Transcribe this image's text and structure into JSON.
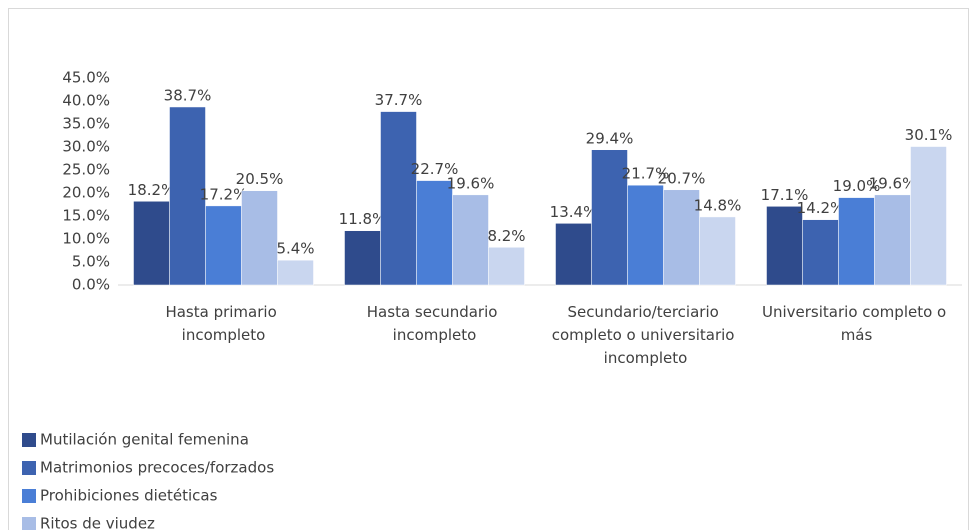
{
  "chart_data": {
    "type": "bar",
    "categories": [
      "Hasta primario incompleto",
      "Hasta secundario incompleto",
      "Secundario/terciario completo o universitario incompleto",
      "Universitario completo o más"
    ],
    "series": [
      {
        "name": "Mutilación genital femenina",
        "color": "#2f4b8c",
        "values": [
          18.2,
          11.8,
          13.4,
          17.1
        ],
        "value_labels": [
          "18.2%",
          "11.8%",
          "13.4%",
          "17.1%"
        ]
      },
      {
        "name": "Matrimonios precoces/forzados",
        "color": "#3d63b0",
        "values": [
          38.7,
          37.7,
          29.4,
          14.2
        ],
        "value_labels": [
          "38.7%",
          "37.7%",
          "29.4%",
          "14.2%"
        ]
      },
      {
        "name": "Prohibiciones dietéticas",
        "color": "#4a7ed6",
        "values": [
          17.2,
          22.7,
          21.7,
          19.0
        ],
        "value_labels": [
          "17.2%",
          "22.7%",
          "21.7%",
          "19.0%"
        ]
      },
      {
        "name": "Ritos de viudez",
        "color": "#a8bde6",
        "values": [
          20.5,
          19.6,
          20.7,
          19.6
        ],
        "value_labels": [
          "20.5%",
          "19.6%",
          "20.7%",
          "19.6%"
        ]
      },
      {
        "color": "#c9d6ef",
        "values": [
          5.4,
          8.2,
          14.8,
          30.1
        ],
        "value_labels": [
          "5.4%",
          "8.2%",
          "14.8%",
          "30.1%"
        ]
      }
    ],
    "ylim": [
      0,
      45
    ],
    "yticks": [
      {
        "value": 0,
        "label": "0.0%"
      },
      {
        "value": 5,
        "label": "5.0%"
      },
      {
        "value": 10,
        "label": "10.0%"
      },
      {
        "value": 15,
        "label": "15.0%"
      },
      {
        "value": 20,
        "label": "20.0%"
      },
      {
        "value": 25,
        "label": "25.0%"
      },
      {
        "value": 30,
        "label": "30.0%"
      },
      {
        "value": 35,
        "label": "35.0%"
      },
      {
        "value": 40,
        "label": "40.0%"
      },
      {
        "value": 45,
        "label": "45.0%"
      }
    ],
    "grid": false
  }
}
